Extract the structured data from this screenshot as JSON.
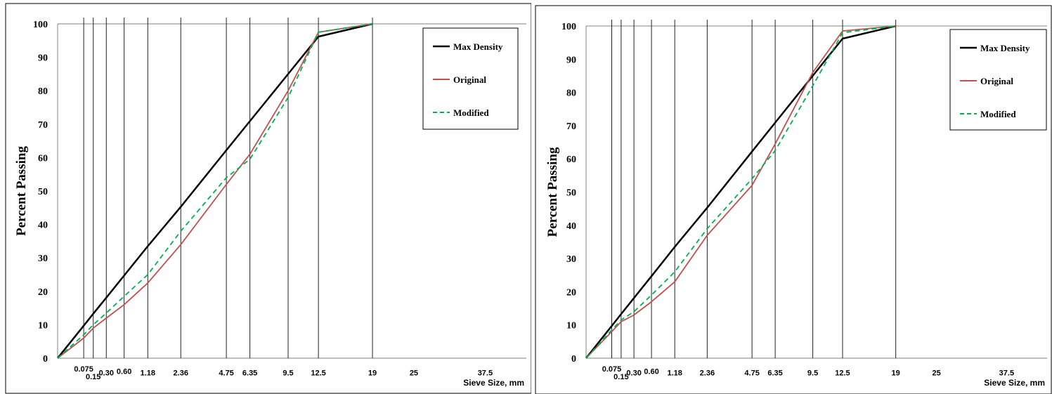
{
  "chart_data": [
    {
      "type": "line",
      "xlabel": "Sieve Size, mm",
      "ylabel": "Percent Passing",
      "ylim": [
        0,
        100
      ],
      "yticks": [
        0,
        10,
        20,
        30,
        40,
        50,
        60,
        70,
        80,
        90,
        100
      ],
      "x_scale": "power 0.45",
      "xlim": [
        0,
        46
      ],
      "sieve_ticks": [
        "0.075",
        "0.15",
        "0.30",
        "0.60",
        "1.18",
        "2.36",
        "4.75",
        "6.35",
        "9.5",
        "12.5",
        "19",
        "25",
        "37.5"
      ],
      "sieve_values": [
        0.075,
        0.15,
        0.3,
        0.6,
        1.18,
        2.36,
        4.75,
        6.35,
        9.5,
        12.5,
        19,
        25,
        37.5
      ],
      "gridlines_at": [
        0.075,
        0.15,
        0.3,
        0.6,
        1.18,
        2.36,
        4.75,
        6.35,
        9.5,
        12.5,
        19
      ],
      "grid": true,
      "legend_placement": "top-right",
      "series": [
        {
          "name": "Max Density",
          "color": "#000000",
          "style": "solid",
          "x": [
            0,
            0.075,
            0.15,
            0.3,
            0.6,
            1.18,
            2.36,
            4.75,
            6.35,
            9.5,
            12.5,
            19
          ],
          "y": [
            0,
            9.7,
            13.3,
            18.1,
            24.7,
            33.5,
            45.3,
            62.2,
            70.9,
            85.0,
            96.2,
            100
          ]
        },
        {
          "name": "Original",
          "color": "#c0504d",
          "style": "solid",
          "x": [
            0,
            0.075,
            0.15,
            0.3,
            0.6,
            1.18,
            2.36,
            4.75,
            6.35,
            9.5,
            12.5,
            19
          ],
          "y": [
            0,
            6,
            9,
            12,
            16,
            22.5,
            34,
            52,
            61,
            80,
            97.5,
            100
          ]
        },
        {
          "name": "Modified",
          "color": "#00b050",
          "style": "dashed",
          "x": [
            0,
            0.075,
            0.15,
            0.3,
            0.6,
            1.18,
            2.36,
            4.75,
            6.35,
            9.5,
            12.5,
            19
          ],
          "y": [
            0,
            7,
            10,
            13.5,
            18.5,
            25,
            38,
            54,
            59.5,
            78,
            97.5,
            100
          ]
        }
      ]
    },
    {
      "type": "line",
      "xlabel": "Sieve Size, mm",
      "ylabel": "Percent Passing",
      "ylim": [
        0,
        100
      ],
      "yticks": [
        0,
        10,
        20,
        30,
        40,
        50,
        60,
        70,
        80,
        90,
        100
      ],
      "x_scale": "power 0.45",
      "xlim": [
        0,
        46
      ],
      "sieve_ticks": [
        "0.075",
        "0.15",
        "0.30",
        "0.60",
        "1.18",
        "2.36",
        "4.75",
        "6.35",
        "9.5",
        "12.5",
        "19",
        "25",
        "37.5"
      ],
      "sieve_values": [
        0.075,
        0.15,
        0.3,
        0.6,
        1.18,
        2.36,
        4.75,
        6.35,
        9.5,
        12.5,
        19,
        25,
        37.5
      ],
      "gridlines_at": [
        0.075,
        0.15,
        0.3,
        0.6,
        1.18,
        2.36,
        4.75,
        6.35,
        9.5,
        12.5,
        19
      ],
      "grid": true,
      "legend_placement": "top-right",
      "series": [
        {
          "name": "Max Density",
          "color": "#000000",
          "style": "solid",
          "x": [
            0,
            0.075,
            0.15,
            0.3,
            0.6,
            1.18,
            2.36,
            4.75,
            6.35,
            9.5,
            12.5,
            19
          ],
          "y": [
            0,
            9.7,
            13.3,
            18.1,
            24.7,
            33.5,
            45.3,
            62.2,
            70.9,
            85.0,
            96.2,
            100
          ]
        },
        {
          "name": "Original",
          "color": "#c0504d",
          "style": "solid",
          "x": [
            0,
            0.075,
            0.15,
            0.3,
            0.6,
            1.18,
            2.36,
            4.75,
            6.35,
            9.5,
            12.5,
            19
          ],
          "y": [
            0,
            8,
            11,
            13,
            17,
            23,
            37,
            52,
            64.5,
            86,
            98.5,
            100
          ]
        },
        {
          "name": "Modified",
          "color": "#00b050",
          "style": "dashed",
          "x": [
            0,
            0.075,
            0.15,
            0.3,
            0.6,
            1.18,
            2.36,
            4.75,
            6.35,
            9.5,
            12.5,
            19
          ],
          "y": [
            0,
            8.5,
            11.5,
            14,
            19,
            26,
            39,
            54,
            62.5,
            82,
            98,
            100
          ]
        }
      ]
    }
  ]
}
